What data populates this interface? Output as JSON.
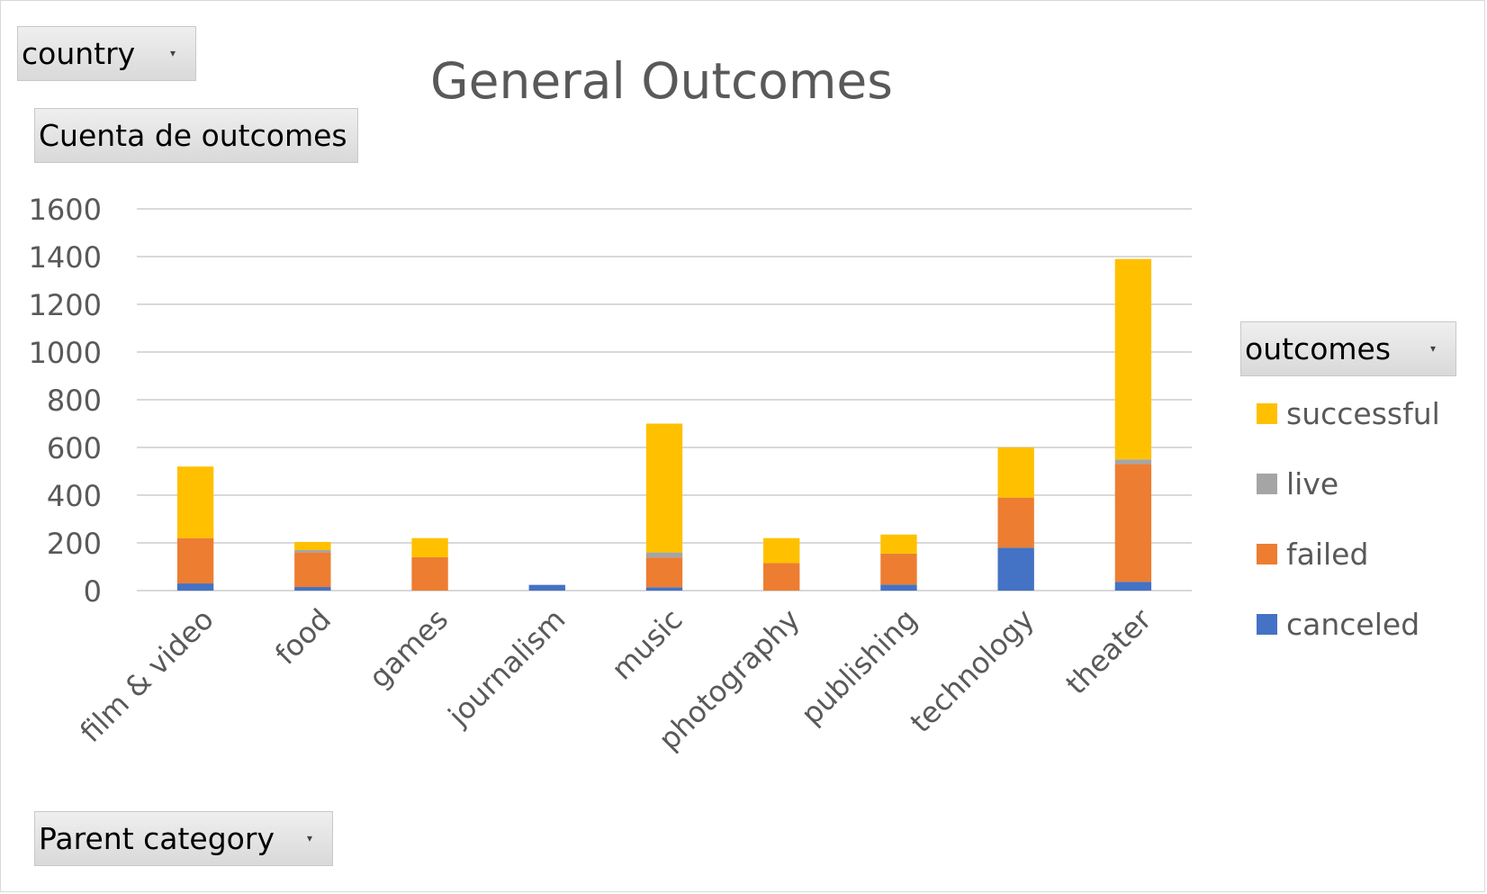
{
  "filter_buttons": {
    "report_filter_label": "country",
    "values_label": "Cuenta de outcomes",
    "axis_field_label": "Parent category",
    "legend_field_label": "outcomes"
  },
  "chart_data": {
    "type": "bar",
    "stacked": true,
    "title": "General Outcomes",
    "xlabel": "",
    "ylabel": "",
    "ylim": [
      0,
      1600
    ],
    "y_ticks": [
      0,
      200,
      400,
      600,
      800,
      1000,
      1200,
      1400,
      1600
    ],
    "grid": true,
    "legend_position": "right",
    "categories": [
      "film & video",
      "food",
      "games",
      "journalism",
      "music",
      "photography",
      "publishing",
      "technology",
      "theater"
    ],
    "series": [
      {
        "name": "canceled",
        "color": "#4472c4",
        "values": [
          30,
          15,
          0,
          24,
          14,
          0,
          25,
          180,
          37
        ]
      },
      {
        "name": "failed",
        "color": "#ed7d31",
        "values": [
          190,
          145,
          140,
          0,
          125,
          115,
          130,
          210,
          493
        ]
      },
      {
        "name": "live",
        "color": "#a5a5a5",
        "values": [
          0,
          10,
          0,
          0,
          21,
          0,
          0,
          0,
          20
        ]
      },
      {
        "name": "successful",
        "color": "#ffc000",
        "values": [
          300,
          34,
          80,
          0,
          540,
          105,
          80,
          210,
          840
        ]
      }
    ],
    "legend_order": [
      "successful",
      "live",
      "failed",
      "canceled"
    ]
  }
}
